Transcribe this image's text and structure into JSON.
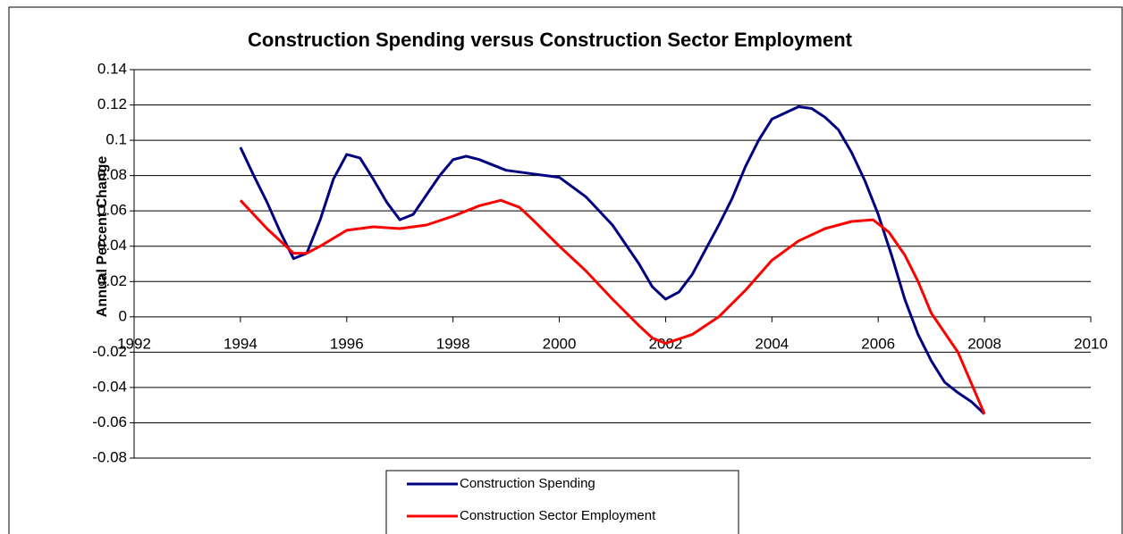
{
  "chart_data": {
    "type": "line",
    "title": "Construction Spending versus Construction Sector Employment",
    "y_label": "Annual Percent Change",
    "xlim": [
      1992,
      2010
    ],
    "xticks": [
      1992,
      1994,
      1996,
      1998,
      2000,
      2002,
      2004,
      2006,
      2008,
      2010
    ],
    "ylim": [
      -0.08,
      0.14
    ],
    "yticks": [
      -0.08,
      -0.06,
      -0.04,
      -0.02,
      0,
      0.02,
      0.04,
      0.06,
      0.08,
      0.1,
      0.12,
      0.14
    ],
    "grid": true,
    "legend": "bottom",
    "series": [
      {
        "name": "Construction Spending",
        "color": "#000080",
        "x": [
          1994.0,
          1994.25,
          1994.5,
          1994.75,
          1995.0,
          1995.25,
          1995.5,
          1995.75,
          1996.0,
          1996.25,
          1996.5,
          1996.75,
          1997.0,
          1997.25,
          1997.5,
          1997.75,
          1998.0,
          1998.25,
          1998.5,
          1998.75,
          1999.0,
          1999.5,
          2000.0,
          2000.5,
          2001.0,
          2001.5,
          2001.75,
          2002.0,
          2002.25,
          2002.5,
          2002.75,
          2003.0,
          2003.25,
          2003.5,
          2003.75,
          2004.0,
          2004.5,
          2004.75,
          2005.0,
          2005.25,
          2005.5,
          2005.75,
          2006.0,
          2006.25,
          2006.5,
          2006.75,
          2007.0,
          2007.25,
          2007.5,
          2007.75,
          2008.0
        ],
        "values": [
          0.096,
          0.08,
          0.065,
          0.048,
          0.033,
          0.036,
          0.055,
          0.078,
          0.092,
          0.09,
          0.078,
          0.065,
          0.055,
          0.058,
          0.069,
          0.08,
          0.089,
          0.091,
          0.089,
          0.086,
          0.083,
          0.081,
          0.079,
          0.068,
          0.052,
          0.03,
          0.017,
          0.01,
          0.014,
          0.024,
          0.038,
          0.052,
          0.067,
          0.085,
          0.1,
          0.112,
          0.119,
          0.118,
          0.113,
          0.106,
          0.093,
          0.077,
          0.058,
          0.035,
          0.01,
          -0.01,
          -0.025,
          -0.037,
          -0.043,
          -0.048,
          -0.055
        ]
      },
      {
        "name": "Construction Sector Employment",
        "color": "#ff0000",
        "x": [
          1994.0,
          1994.5,
          1995.0,
          1995.25,
          1995.5,
          1996.0,
          1996.5,
          1997.0,
          1997.5,
          1998.0,
          1998.5,
          1998.9,
          1999.25,
          1999.5,
          2000.0,
          2000.5,
          2001.0,
          2001.5,
          2001.75,
          2002.0,
          2002.5,
          2003.0,
          2003.5,
          2004.0,
          2004.5,
          2005.0,
          2005.5,
          2005.9,
          2006.2,
          2006.5,
          2006.75,
          2007.0,
          2007.5,
          2008.0
        ],
        "values": [
          0.066,
          0.05,
          0.036,
          0.036,
          0.04,
          0.049,
          0.051,
          0.05,
          0.052,
          0.057,
          0.063,
          0.066,
          0.062,
          0.055,
          0.04,
          0.026,
          0.01,
          -0.005,
          -0.012,
          -0.015,
          -0.01,
          0.0,
          0.015,
          0.032,
          0.043,
          0.05,
          0.054,
          0.055,
          0.048,
          0.035,
          0.02,
          0.002,
          -0.02,
          -0.055
        ]
      }
    ]
  }
}
